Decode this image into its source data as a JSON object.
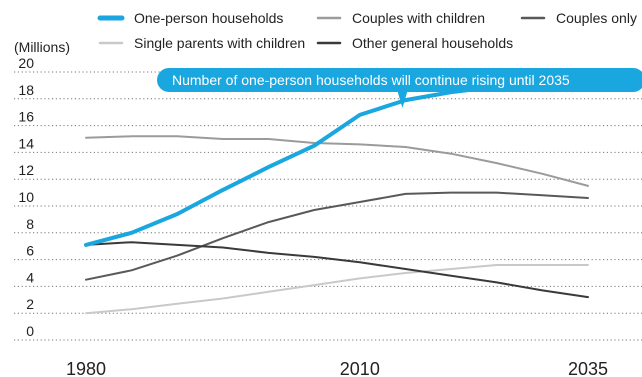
{
  "chart_data": {
    "type": "line",
    "ylabel": "(Millions)",
    "x": [
      1980,
      1985,
      1990,
      1995,
      2000,
      2005,
      2010,
      2015,
      2020,
      2025,
      2030,
      2035
    ],
    "x_ticks": [
      "1980",
      "2010",
      "2035"
    ],
    "y_ticks": [
      "0",
      "2",
      "4",
      "6",
      "8",
      "10",
      "12",
      "14",
      "16",
      "18",
      "20"
    ],
    "ylim": [
      0,
      20
    ],
    "grid": "horizontal dotted",
    "legend": "top",
    "series": [
      {
        "name": "One-person households",
        "color": "#1aa6df",
        "width": 4,
        "values": [
          7.1,
          8.0,
          9.4,
          11.2,
          12.9,
          14.5,
          16.8,
          17.9,
          18.5,
          18.9,
          18.9,
          18.7
        ]
      },
      {
        "name": "Couples with children",
        "color": "#9b9b9b",
        "width": 2,
        "values": [
          15.1,
          15.2,
          15.2,
          15.0,
          15.0,
          14.7,
          14.6,
          14.4,
          13.9,
          13.2,
          12.4,
          11.5
        ]
      },
      {
        "name": "Couples only",
        "color": "#595959",
        "width": 2,
        "values": [
          4.5,
          5.2,
          6.3,
          7.6,
          8.8,
          9.7,
          10.3,
          10.9,
          11.0,
          11.0,
          10.8,
          10.6
        ]
      },
      {
        "name": "Single parents with children",
        "color": "#c9c9c9",
        "width": 2,
        "values": [
          2.0,
          2.3,
          2.7,
          3.1,
          3.6,
          4.1,
          4.6,
          5.0,
          5.3,
          5.6,
          5.6,
          5.6
        ]
      },
      {
        "name": "Other general households",
        "color": "#3a3a3a",
        "width": 2,
        "values": [
          7.1,
          7.3,
          7.1,
          6.9,
          6.5,
          6.2,
          5.8,
          5.3,
          4.8,
          4.3,
          3.7,
          3.2
        ]
      }
    ],
    "annotation": {
      "text": "Number of one-person households will continue rising until 2035",
      "color": "#1aa6df",
      "points_to_x": 2015
    }
  }
}
